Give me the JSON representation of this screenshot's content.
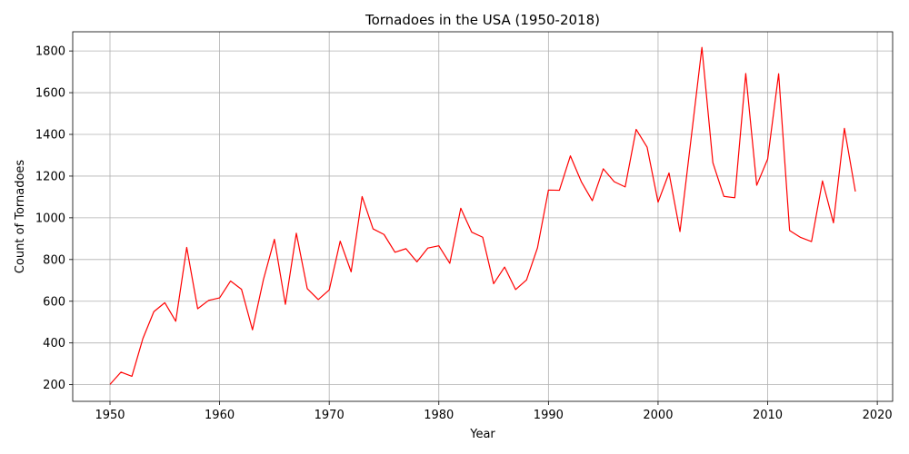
{
  "chart_data": {
    "type": "line",
    "title": "Tornadoes in the USA (1950-2018)",
    "xlabel": "Year",
    "ylabel": "Count of Tornadoes",
    "xlim": [
      1946.6,
      2021.4
    ],
    "ylim": [
      120,
      1892
    ],
    "xticks": [
      1950,
      1960,
      1970,
      1980,
      1990,
      2000,
      2010,
      2020
    ],
    "yticks": [
      200,
      400,
      600,
      800,
      1000,
      1200,
      1400,
      1600,
      1800
    ],
    "grid": true,
    "line_color": "#ff0000",
    "series": [
      {
        "x": [
          1950,
          1951,
          1952,
          1953,
          1954,
          1955,
          1956,
          1957,
          1958,
          1959,
          1960,
          1961,
          1962,
          1963,
          1964,
          1965,
          1966,
          1967,
          1968,
          1969,
          1970,
          1971,
          1972,
          1973,
          1974,
          1975,
          1976,
          1977,
          1978,
          1979,
          1980,
          1981,
          1982,
          1983,
          1984,
          1985,
          1986,
          1987,
          1988,
          1989,
          1990,
          1991,
          1992,
          1993,
          1994,
          1995,
          1996,
          1997,
          1998,
          1999,
          2000,
          2001,
          2002,
          2003,
          2004,
          2005,
          2006,
          2007,
          2008,
          2009,
          2010,
          2011,
          2012,
          2013,
          2014,
          2015,
          2016,
          2017,
          2018
        ],
        "values": [
          201,
          260,
          240,
          421,
          550,
          593,
          504,
          858,
          564,
          604,
          616,
          697,
          657,
          463,
          704,
          897,
          585,
          926,
          660,
          608,
          654,
          888,
          741,
          1102,
          947,
          920,
          835,
          852,
          789,
          855,
          866,
          782,
          1046,
          931,
          907,
          684,
          764,
          656,
          702,
          856,
          1133,
          1132,
          1297,
          1173,
          1082,
          1235,
          1173,
          1148,
          1424,
          1339,
          1075,
          1215,
          934,
          1374,
          1817,
          1264,
          1103,
          1096,
          1692,
          1156,
          1282,
          1691,
          939,
          906,
          886,
          1177,
          976,
          1429,
          1126
        ]
      }
    ]
  }
}
